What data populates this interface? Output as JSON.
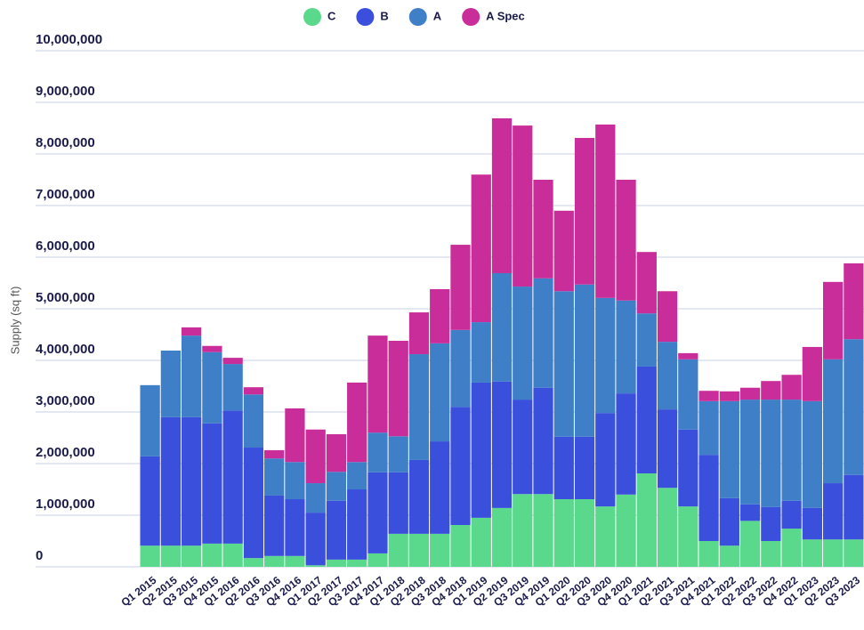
{
  "chart_data": {
    "type": "stacked_bar",
    "y_label": "Supply (sq ft)",
    "categories": [
      "Q1 2015",
      "Q2 2015",
      "Q3 2015",
      "Q4 2015",
      "Q1 2016",
      "Q2 2016",
      "Q3 2016",
      "Q4 2016",
      "Q1 2017",
      "Q2 2017",
      "Q3 2017",
      "Q4 2017",
      "Q1 2018",
      "Q2 2018",
      "Q3 2018",
      "Q4 2018",
      "Q1 2019",
      "Q2 2019",
      "Q3 2019",
      "Q4 2019",
      "Q1 2020",
      "Q2 2020",
      "Q3 2020",
      "Q4 2020",
      "Q1 2021",
      "Q2 2021",
      "Q3 2021",
      "Q4 2021",
      "Q1 2022",
      "Q2 2022",
      "Q3 2022",
      "Q4 2022",
      "Q1 2023",
      "Q2 2023",
      "Q3 2023"
    ],
    "series": [
      {
        "name": "C",
        "color": "#5ad88c",
        "values": [
          410000,
          410000,
          410000,
          450000,
          450000,
          170000,
          210000,
          210000,
          30000,
          140000,
          140000,
          260000,
          640000,
          640000,
          640000,
          810000,
          950000,
          1140000,
          1410000,
          1410000,
          1310000,
          1310000,
          1170000,
          1400000,
          1810000,
          1530000,
          1170000,
          500000,
          410000,
          890000,
          500000,
          740000,
          530000,
          530000,
          530000
        ]
      },
      {
        "name": "B",
        "color": "#3a4fdc",
        "values": [
          1730000,
          2490000,
          2490000,
          2330000,
          2580000,
          2140000,
          1170000,
          1100000,
          1020000,
          1140000,
          1360000,
          1570000,
          1190000,
          1430000,
          1790000,
          2290000,
          2620000,
          2450000,
          1830000,
          2060000,
          1210000,
          1210000,
          1810000,
          1960000,
          2070000,
          1520000,
          1490000,
          1670000,
          920000,
          320000,
          660000,
          540000,
          610000,
          1090000,
          1250000
        ]
      },
      {
        "name": "A",
        "color": "#3f7fc8",
        "values": [
          1380000,
          1290000,
          1580000,
          1380000,
          900000,
          1030000,
          720000,
          720000,
          570000,
          560000,
          530000,
          770000,
          700000,
          2050000,
          1900000,
          1490000,
          1170000,
          2100000,
          2190000,
          2120000,
          2820000,
          2950000,
          2230000,
          1800000,
          1030000,
          1310000,
          1360000,
          1040000,
          1880000,
          2030000,
          2080000,
          1960000,
          2070000,
          2400000,
          2630000
        ]
      },
      {
        "name": "A Spec",
        "color": "#c92d99",
        "values": [
          0,
          0,
          160000,
          120000,
          120000,
          140000,
          160000,
          1040000,
          1040000,
          730000,
          1540000,
          1880000,
          1850000,
          810000,
          1050000,
          1650000,
          2860000,
          3000000,
          3120000,
          1910000,
          1560000,
          2840000,
          3360000,
          2340000,
          1190000,
          980000,
          120000,
          200000,
          190000,
          230000,
          360000,
          480000,
          1050000,
          1500000,
          1470000
        ]
      }
    ],
    "ylim": [
      0,
      10000000
    ],
    "yticks": [
      0,
      {
        "value": 1000000,
        "label": "1,000,000"
      },
      {
        "value": 2000000,
        "label": "2,000,000"
      },
      {
        "value": 3000000,
        "label": "3,000,000"
      },
      {
        "value": 4000000,
        "label": "4,000,000"
      },
      {
        "value": 5000000,
        "label": "5,000,000"
      },
      {
        "value": 6000000,
        "label": "6,000,000"
      },
      {
        "value": 7000000,
        "label": "7,000,000"
      },
      {
        "value": 8000000,
        "label": "8,000,000"
      },
      {
        "value": 9000000,
        "label": "9,000,000"
      },
      {
        "value": 10000000,
        "label": "10,000,000"
      }
    ],
    "grid": true,
    "legend": "top"
  }
}
